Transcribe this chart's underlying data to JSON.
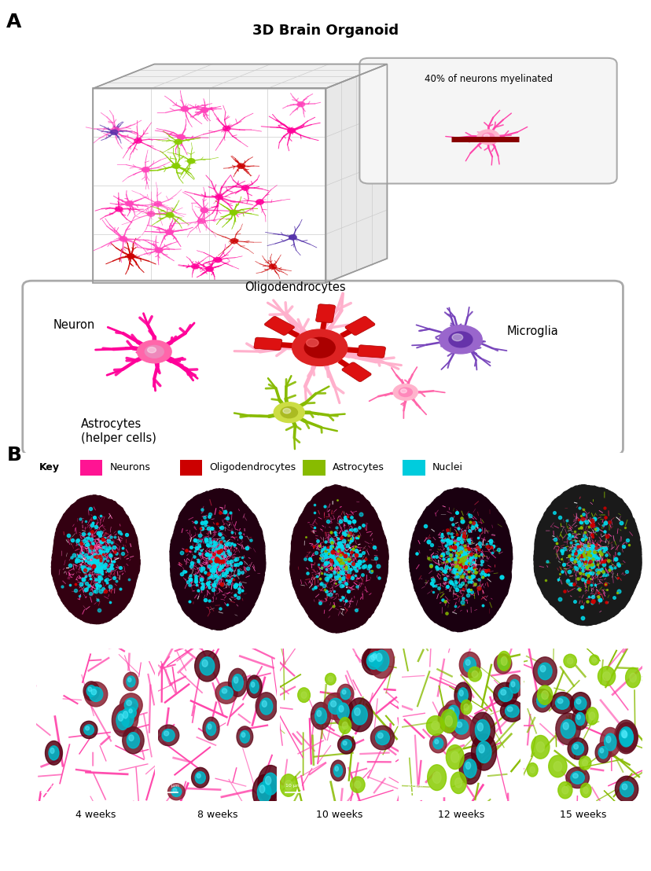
{
  "title_A": "3D Brain Organoid",
  "label_A": "A",
  "label_B": "B",
  "panel_A_annotation": "40% of neurons myelinated",
  "key_items": [
    {
      "label": "Neurons",
      "color": "#FF1493"
    },
    {
      "label": "Oligodendrocytes",
      "color": "#CC0000"
    },
    {
      "label": "Astrocytes",
      "color": "#88BB00"
    },
    {
      "label": "Nuclei",
      "color": "#00CCDD"
    }
  ],
  "time_points": [
    "4 weeks",
    "8 weeks",
    "10 weeks",
    "12 weeks",
    "15 weeks"
  ],
  "background_color": "#ffffff",
  "figure_width": 8.29,
  "figure_height": 11.08,
  "dpi": 100,
  "cube_grid": 4,
  "neuron_pink": "#FF44BB",
  "neuron_magenta": "#FF0099",
  "neuron_red": "#CC0000",
  "neuron_green": "#88CC00",
  "neuron_purple": "#5533AA"
}
